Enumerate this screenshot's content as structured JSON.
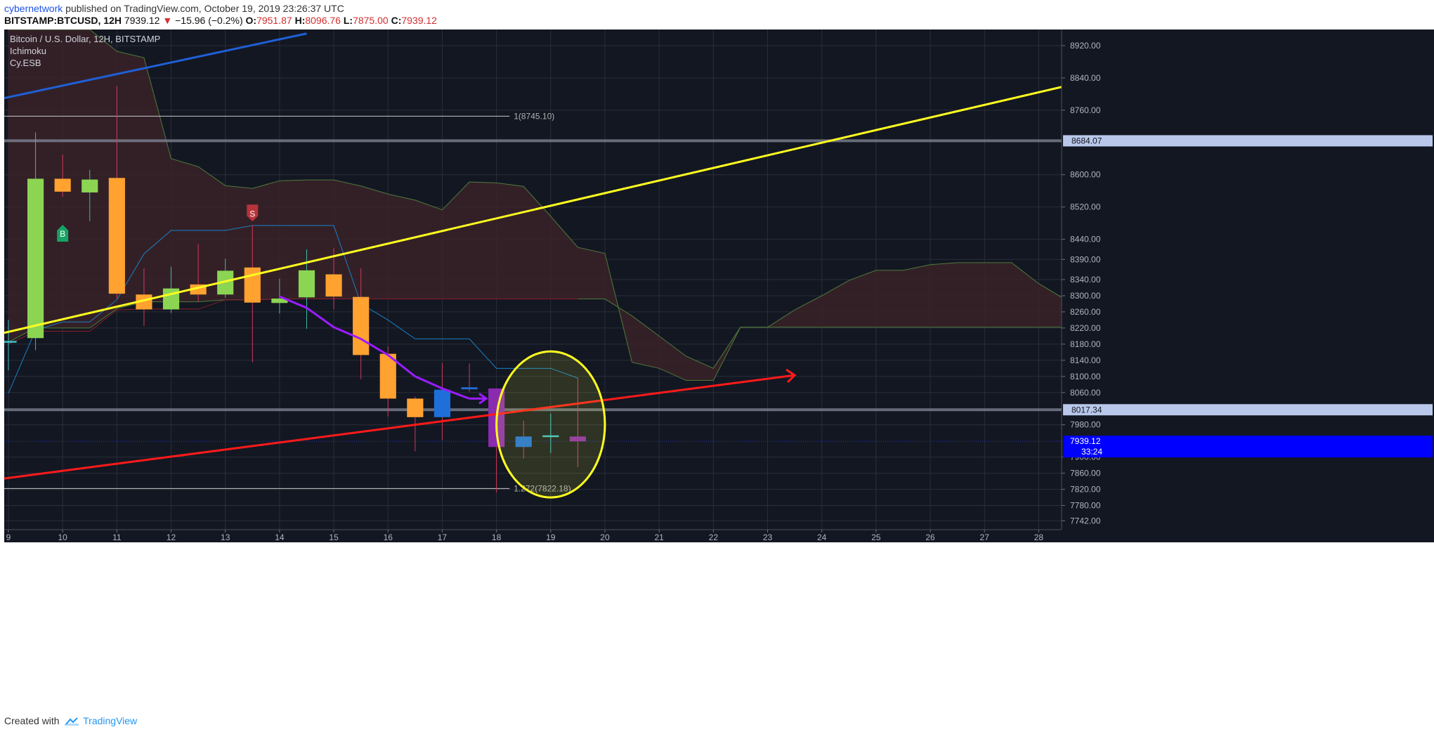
{
  "header": {
    "author": "cybernetwork",
    "published_text": "published on TradingView.com, October 19, 2019 23:26:37 UTC",
    "symbol": "BITSTAMP:BTCUSD, 12H",
    "last": "7939.12",
    "direction_glyph": "▼",
    "change": "−15.96 (−0.2%)",
    "o_label": "O:",
    "o": "7951.87",
    "h_label": "H:",
    "h": "8096.76",
    "l_label": "L:",
    "l": "7875.00",
    "c_label": "C:",
    "c": "7939.12"
  },
  "legend": {
    "title": "Bitcoin / U.S. Dollar, 12H, BITSTAMP",
    "indicator1": "Ichimoku",
    "indicator2": "Cy.ESB"
  },
  "footer": {
    "created_with": "Created with",
    "brand": "TradingView"
  },
  "colors": {
    "background": "#131722",
    "grid": "#2a2e39",
    "bull": "#8bd553",
    "bear": "#ffa230",
    "blue_candle": "#1e6fd9",
    "purple_candle": "#8a2bb0",
    "cloud_bear": "#3a2228",
    "yellow_line": "#ffff20",
    "red_line": "#ff1a1a",
    "blue_line": "#1f5fd6",
    "purple_line": "#9b1cff",
    "price_tag": "#0000ff"
  },
  "chart_data": {
    "type": "candlestick",
    "title": "Bitcoin / U.S. Dollar, 12H, BITSTAMP",
    "timeframe": "12H",
    "xlim": [
      9.0,
      28.5
    ],
    "ylim": [
      7720,
      8960
    ],
    "x_ticks": [
      "9",
      "10",
      "11",
      "12",
      "13",
      "14",
      "15",
      "16",
      "17",
      "18",
      "19",
      "20",
      "21",
      "22",
      "23",
      "24",
      "25",
      "26",
      "27",
      "28"
    ],
    "y_ticks": [
      "8920.00",
      "8840.00",
      "8760.00",
      "8600.00",
      "8520.00",
      "8440.00",
      "8390.00",
      "8340.00",
      "8300.00",
      "8260.00",
      "8220.00",
      "8180.00",
      "8140.00",
      "8100.00",
      "8060.00",
      "7980.00",
      "7900.00",
      "7860.00",
      "7820.00",
      "7780.00",
      "7742.00"
    ],
    "candles": [
      {
        "t": 9.0,
        "o": 8185,
        "h": 8240,
        "l": 8115,
        "c": 8187,
        "color": "doji"
      },
      {
        "t": 9.5,
        "o": 8195,
        "h": 8705,
        "l": 8165,
        "c": 8590,
        "color": "bull"
      },
      {
        "t": 10.0,
        "o": 8590,
        "h": 8650,
        "l": 8545,
        "c": 8558,
        "color": "bear"
      },
      {
        "t": 10.5,
        "o": 8556,
        "h": 8612,
        "l": 8485,
        "c": 8588,
        "color": "bull"
      },
      {
        "t": 11.0,
        "o": 8592,
        "h": 8820,
        "l": 8292,
        "c": 8305,
        "color": "bear"
      },
      {
        "t": 11.5,
        "o": 8303,
        "h": 8368,
        "l": 8225,
        "c": 8266,
        "color": "bear"
      },
      {
        "t": 12.0,
        "o": 8266,
        "h": 8372,
        "l": 8257,
        "c": 8318,
        "color": "bull"
      },
      {
        "t": 12.5,
        "o": 8328,
        "h": 8428,
        "l": 8286,
        "c": 8303,
        "color": "bear"
      },
      {
        "t": 13.0,
        "o": 8303,
        "h": 8392,
        "l": 8295,
        "c": 8362,
        "color": "bull"
      },
      {
        "t": 13.5,
        "o": 8370,
        "h": 8475,
        "l": 8135,
        "c": 8283,
        "color": "bear"
      },
      {
        "t": 14.0,
        "o": 8282,
        "h": 8342,
        "l": 8256,
        "c": 8293,
        "color": "bull"
      },
      {
        "t": 14.5,
        "o": 8296,
        "h": 8415,
        "l": 8218,
        "c": 8363,
        "color": "bull"
      },
      {
        "t": 15.0,
        "o": 8353,
        "h": 8418,
        "l": 8266,
        "c": 8298,
        "color": "bear"
      },
      {
        "t": 15.5,
        "o": 8297,
        "h": 8368,
        "l": 8093,
        "c": 8153,
        "color": "bear"
      },
      {
        "t": 16.0,
        "o": 8156,
        "h": 8175,
        "l": 8001,
        "c": 8045,
        "color": "bear"
      },
      {
        "t": 16.5,
        "o": 8045,
        "h": 8050,
        "l": 7914,
        "c": 7999,
        "color": "bear"
      },
      {
        "t": 17.0,
        "o": 7999,
        "h": 8133,
        "l": 7942,
        "c": 8067,
        "color": "blue"
      },
      {
        "t": 17.5,
        "o": 8068,
        "h": 8132,
        "l": 8062,
        "c": 8073,
        "color": "blue"
      },
      {
        "t": 18.0,
        "o": 8070,
        "h": 8070,
        "l": 7812,
        "c": 7925,
        "color": "purple"
      },
      {
        "t": 18.5,
        "o": 7925,
        "h": 7990,
        "l": 7896,
        "c": 7951,
        "color": "blue"
      },
      {
        "t": 19.0,
        "o": 7952,
        "h": 8008,
        "l": 7910,
        "c": 7953,
        "color": "doji"
      },
      {
        "t": 19.5,
        "o": 7951,
        "h": 8097,
        "l": 7875,
        "c": 7939,
        "color": "purple"
      }
    ],
    "ichimoku": {
      "tenkan": [
        [
          9,
          8058
        ],
        [
          9.5,
          8215
        ],
        [
          10,
          8235
        ],
        [
          10.5,
          8235
        ],
        [
          11,
          8290
        ],
        [
          11.5,
          8404
        ],
        [
          12,
          8462
        ],
        [
          12.5,
          8462
        ],
        [
          13,
          8462
        ],
        [
          13.5,
          8474
        ],
        [
          14,
          8474
        ],
        [
          14.5,
          8474
        ],
        [
          15,
          8474
        ],
        [
          15.5,
          8280
        ],
        [
          16,
          8240
        ],
        [
          16.5,
          8193
        ],
        [
          17,
          8193
        ],
        [
          17.5,
          8193
        ],
        [
          18,
          8120
        ],
        [
          18.5,
          8120
        ],
        [
          19,
          8120
        ],
        [
          19.5,
          8096
        ]
      ],
      "kijun": [
        [
          9,
          8180
        ],
        [
          9.5,
          8212
        ],
        [
          10,
          8212
        ],
        [
          10.5,
          8212
        ],
        [
          11,
          8265
        ],
        [
          11.5,
          8267
        ],
        [
          12,
          8267
        ],
        [
          12.5,
          8267
        ],
        [
          13,
          8290
        ],
        [
          13.5,
          8290
        ],
        [
          14,
          8292
        ],
        [
          14.5,
          8292
        ],
        [
          15,
          8292
        ],
        [
          15.5,
          8292
        ],
        [
          16,
          8292
        ],
        [
          16.5,
          8292
        ],
        [
          17,
          8292
        ],
        [
          17.5,
          8292
        ],
        [
          18,
          8292
        ],
        [
          18.5,
          8292
        ],
        [
          19,
          8292
        ],
        [
          19.5,
          8292
        ]
      ],
      "span_a": [
        [
          9,
          8185
        ],
        [
          9.5,
          8220
        ],
        [
          10,
          8220
        ],
        [
          10.5,
          8220
        ],
        [
          11,
          8268
        ],
        [
          11.5,
          8285
        ],
        [
          12,
          8285
        ],
        [
          12.5,
          8285
        ],
        [
          13,
          8290
        ],
        [
          13.5,
          8290
        ],
        [
          14,
          8292
        ],
        [
          14.5,
          8292
        ],
        [
          15,
          8292
        ],
        [
          15.5,
          8292
        ],
        [
          16,
          8292
        ],
        [
          16.5,
          8292
        ],
        [
          17,
          8292
        ],
        [
          17.5,
          8292
        ],
        [
          18,
          8292
        ],
        [
          18.5,
          8292
        ],
        [
          19,
          8292
        ],
        [
          19.5,
          8292
        ],
        [
          20,
          8292
        ],
        [
          20.5,
          8250
        ],
        [
          21,
          8200
        ],
        [
          21.5,
          8150
        ],
        [
          22,
          8120
        ],
        [
          22.5,
          8222
        ],
        [
          23,
          8222
        ],
        [
          23.5,
          8265
        ],
        [
          24,
          8300
        ],
        [
          24.5,
          8338
        ],
        [
          25,
          8363
        ],
        [
          25.5,
          8363
        ],
        [
          26,
          8377
        ],
        [
          26.5,
          8382
        ],
        [
          27,
          8382
        ],
        [
          27.5,
          8382
        ],
        [
          28,
          8330
        ],
        [
          28.5,
          8290
        ]
      ],
      "span_b": [
        [
          9,
          8960
        ],
        [
          10,
          8960
        ],
        [
          10.5,
          8960
        ],
        [
          11,
          8906
        ],
        [
          11.5,
          8890
        ],
        [
          12,
          8640
        ],
        [
          12.5,
          8620
        ],
        [
          13,
          8573
        ],
        [
          13.5,
          8566
        ],
        [
          14,
          8585
        ],
        [
          14.5,
          8587
        ],
        [
          15,
          8587
        ],
        [
          15.5,
          8572
        ],
        [
          16,
          8552
        ],
        [
          16.5,
          8537
        ],
        [
          17,
          8513
        ],
        [
          17.5,
          8582
        ],
        [
          18,
          8580
        ],
        [
          18.5,
          8571
        ],
        [
          19,
          8497
        ],
        [
          19.5,
          8420
        ],
        [
          20,
          8405
        ],
        [
          20.5,
          8135
        ],
        [
          21,
          8120
        ],
        [
          21.5,
          8090
        ],
        [
          22,
          8090
        ],
        [
          22.5,
          8222
        ],
        [
          23,
          8222
        ],
        [
          23.5,
          8222
        ],
        [
          24,
          8222
        ],
        [
          24.5,
          8222
        ],
        [
          25,
          8222
        ],
        [
          25.5,
          8222
        ],
        [
          26,
          8222
        ],
        [
          26.5,
          8222
        ],
        [
          27,
          8222
        ],
        [
          27.5,
          8222
        ],
        [
          28,
          8222
        ],
        [
          28.5,
          8222
        ]
      ],
      "chikou_comment_free": true
    },
    "chikou": [
      [
        14.0,
        8298
      ],
      [
        14.5,
        8270
      ],
      [
        15.0,
        8222
      ],
      [
        15.5,
        8193
      ],
      [
        16.0,
        8153
      ],
      [
        16.5,
        8100
      ],
      [
        17.0,
        8070
      ],
      [
        17.5,
        8045
      ]
    ],
    "trendlines": [
      {
        "name": "yellow",
        "color": "#ffff20",
        "from": [
          9.0,
          8208
        ],
        "to": [
          28.5,
          8820
        ]
      },
      {
        "name": "red",
        "color": "#ff1a1a",
        "from": [
          9.0,
          7847
        ],
        "to": [
          23.5,
          8103
        ]
      },
      {
        "name": "blue",
        "color": "#1f5fd6",
        "from": [
          9.0,
          8790
        ],
        "to": [
          14.5,
          8950
        ]
      }
    ],
    "fib_levels": [
      {
        "label": "1(8745.10)",
        "value": 8745.1,
        "from": 9.0,
        "to": 18.5
      },
      {
        "label": "1.272(7822.18)",
        "value": 7822.18,
        "from": 9.0,
        "to": 18.5
      }
    ],
    "horizontal_levels": [
      {
        "value": 8684.07,
        "label": "8684.07"
      },
      {
        "value": 8017.34,
        "label": "8017.34"
      }
    ],
    "last_price": {
      "value": 7939.12,
      "label": "7939.12",
      "countdown": "33:24"
    },
    "signals": [
      {
        "t": 10.0,
        "value": 8455,
        "label": "B",
        "kind": "buy"
      },
      {
        "t": 13.5,
        "value": 8505,
        "label": "S",
        "kind": "sell"
      }
    ],
    "highlight_ellipse": {
      "center": [
        19.0,
        7953
      ],
      "x_span": [
        18.0,
        20.0
      ],
      "y_span": [
        7800,
        8162
      ]
    }
  }
}
